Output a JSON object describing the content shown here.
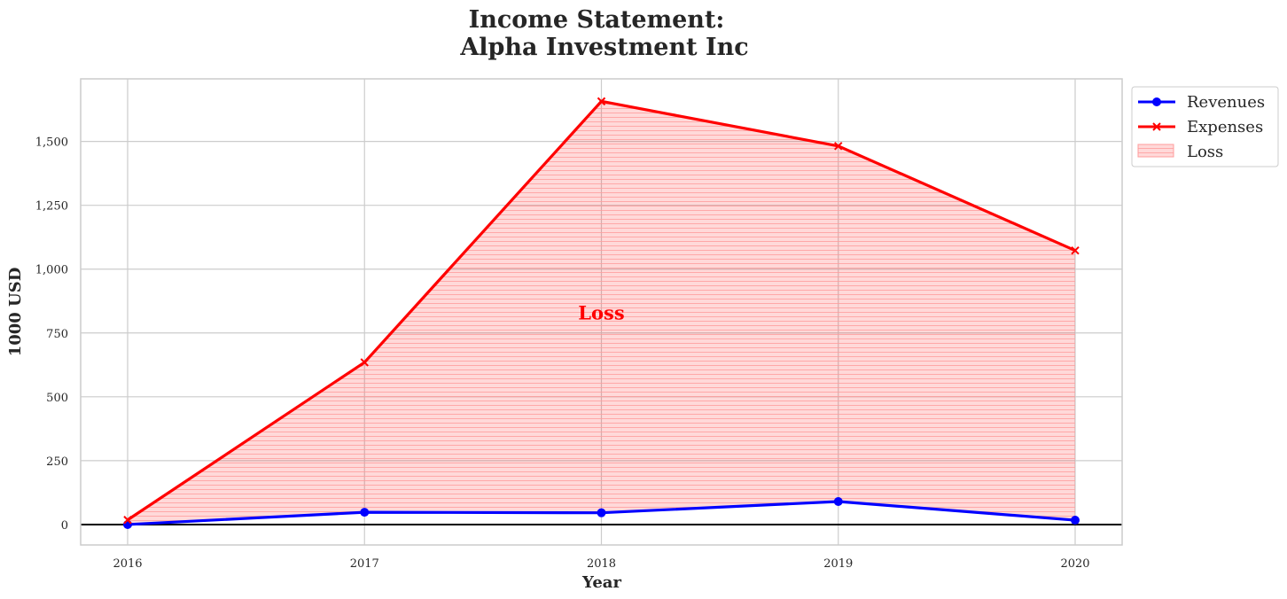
{
  "chart_data": {
    "type": "line",
    "title_line1": "Income Statement:",
    "title_line2": "Alpha Investment Inc",
    "xlabel": "Year",
    "ylabel": "1000 USD",
    "categories": [
      "2016",
      "2017",
      "2018",
      "2019",
      "2020"
    ],
    "yticks": [
      0,
      250,
      500,
      750,
      1000,
      1250,
      1500
    ],
    "ytick_labels": [
      "0",
      "250",
      "500",
      "750",
      "1,000",
      "1,250",
      "1,500"
    ],
    "ylim": [
      -80,
      1745
    ],
    "grid": true,
    "legend_position": "outside-top-right",
    "series": [
      {
        "name": "Revenues",
        "values": [
          0,
          48,
          46,
          90,
          17
        ],
        "color": "#0000ff",
        "marker": "circle"
      },
      {
        "name": "Expenses",
        "values": [
          18,
          635,
          1657,
          1482,
          1073
        ],
        "color": "#ff0000",
        "marker": "x"
      }
    ],
    "fill": {
      "name": "Loss",
      "between": [
        "Revenues",
        "Expenses"
      ],
      "color": "#ff0000",
      "alpha": 0.15,
      "hatch": "horizontal"
    },
    "annotations": [
      {
        "text": "Loss",
        "x": "2018",
        "y": 830,
        "color": "#ff0000"
      }
    ],
    "zero_line_color": "#000000"
  }
}
